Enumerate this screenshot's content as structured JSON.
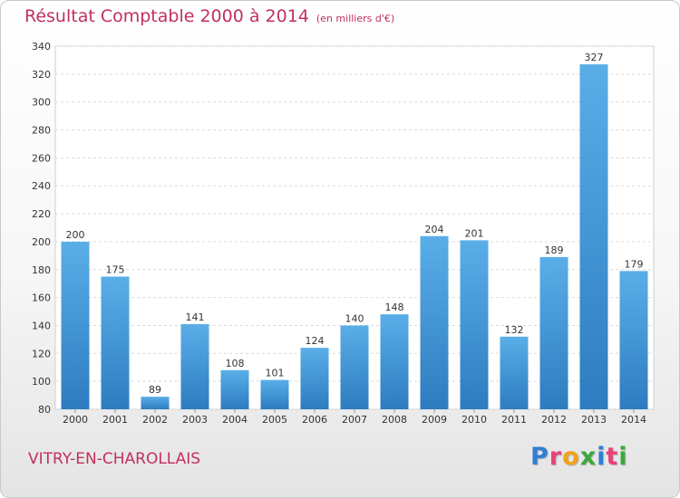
{
  "header": {
    "title": "Résultat Comptable 2000 à 2014",
    "subtitle": "(en milliers d'€)"
  },
  "commune": "VITRY-EN-CHAROLLAIS",
  "logo": {
    "text": "Proxiti",
    "colors": [
      "#2f7fd1",
      "#e7427a",
      "#f3a21c",
      "#3aa83a",
      "#2f7fd1",
      "#e7427a",
      "#3aa83a"
    ]
  },
  "chart_data": {
    "type": "bar",
    "title": "Résultat Comptable 2000 à 2014",
    "subtitle": "(en milliers d'€)",
    "xlabel": "",
    "ylabel": "",
    "categories": [
      "2000",
      "2001",
      "2002",
      "2003",
      "2004",
      "2005",
      "2006",
      "2007",
      "2008",
      "2009",
      "2010",
      "2011",
      "2012",
      "2013",
      "2014"
    ],
    "values": [
      200,
      175,
      89,
      141,
      108,
      101,
      124,
      140,
      148,
      204,
      201,
      132,
      189,
      327,
      179
    ],
    "ylim": [
      80,
      340
    ],
    "yticks": [
      80,
      100,
      120,
      140,
      160,
      180,
      200,
      220,
      240,
      260,
      280,
      300,
      320,
      340
    ],
    "grid": true,
    "legend": "none",
    "bar_color_light": "#5aaee8",
    "bar_color_dark": "#2d7cc0",
    "title_color": "#c2305c"
  }
}
